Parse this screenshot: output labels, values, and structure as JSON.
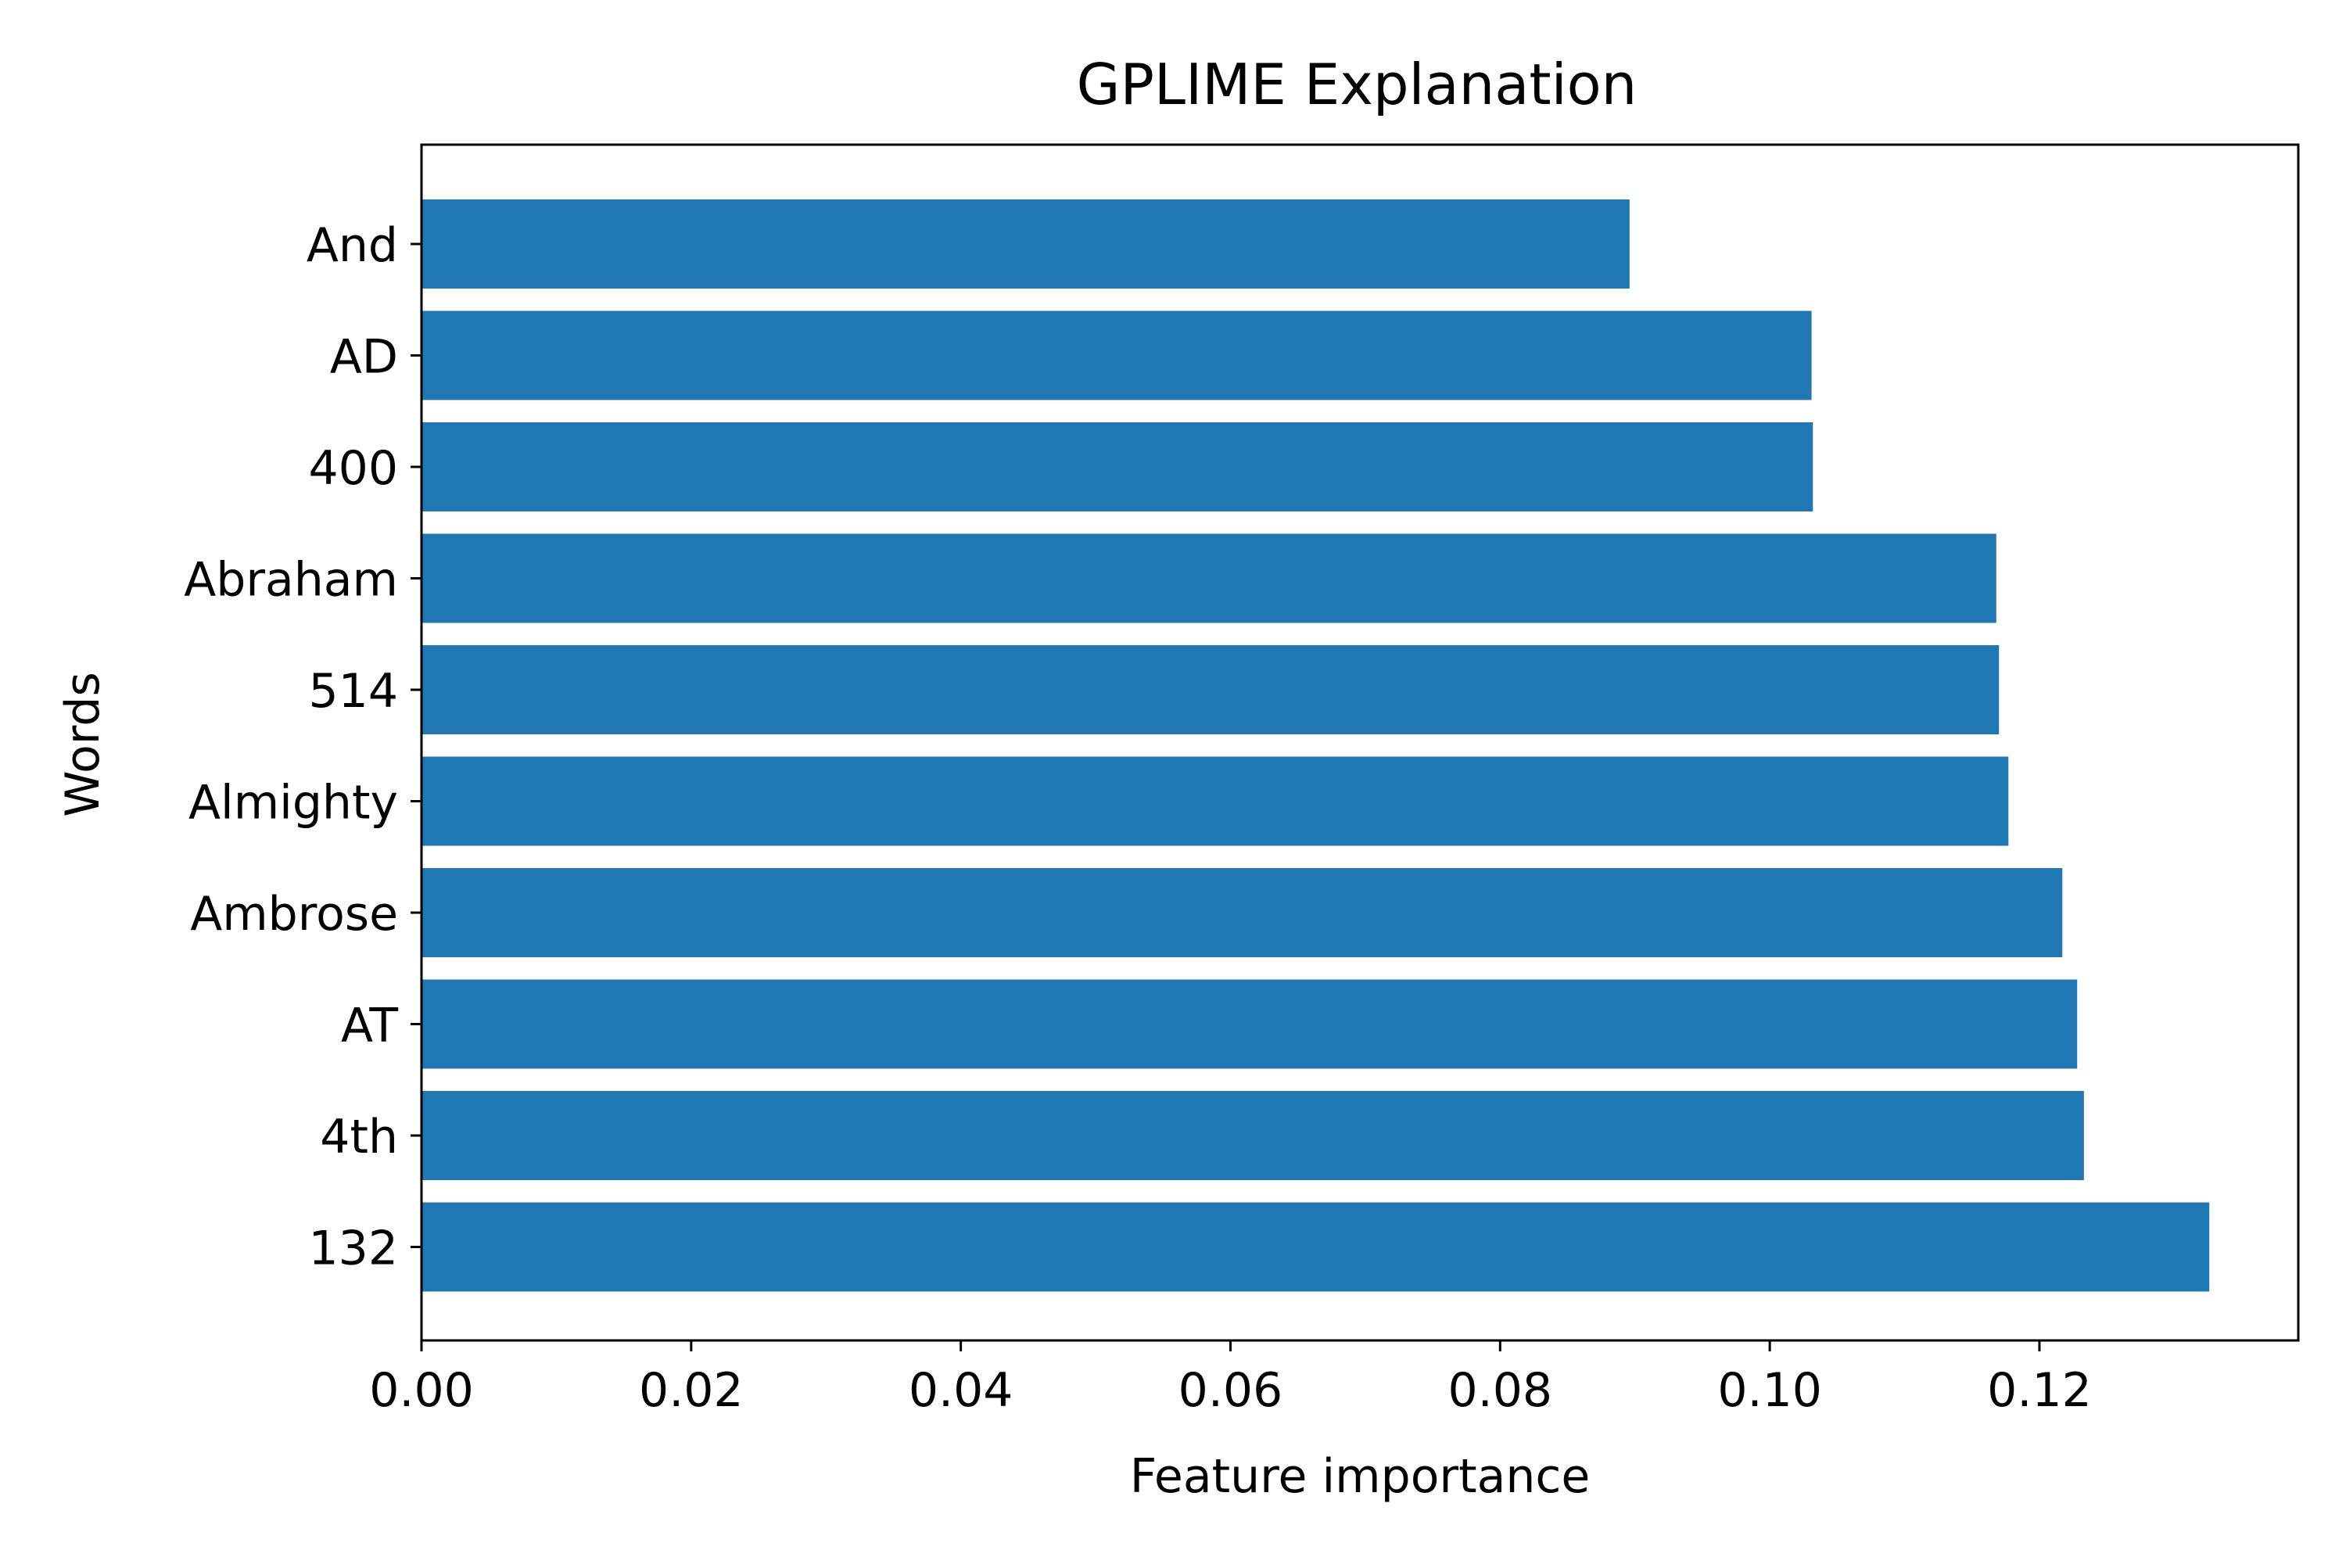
{
  "chart_data": {
    "type": "bar",
    "orientation": "horizontal",
    "title": "GPLIME Explanation",
    "xlabel": "Feature importance",
    "ylabel": "Words",
    "categories": [
      "And",
      "AD",
      "400",
      "Abraham",
      "514",
      "Almighty",
      "Ambrose",
      "AT",
      "4th",
      "132"
    ],
    "values": [
      0.0896,
      0.1031,
      0.1032,
      0.1168,
      0.117,
      0.1177,
      0.1217,
      0.1228,
      0.1233,
      0.1326
    ],
    "xlim": [
      0,
      0.1392
    ],
    "xticks": [
      0.0,
      0.02,
      0.04,
      0.06,
      0.08,
      0.1,
      0.12
    ],
    "xtick_labels": [
      "0.00",
      "0.02",
      "0.04",
      "0.06",
      "0.08",
      "0.10",
      "0.12"
    ],
    "grid": false,
    "colors": {
      "bar": "#1f77b4",
      "axis": "#000000"
    }
  }
}
